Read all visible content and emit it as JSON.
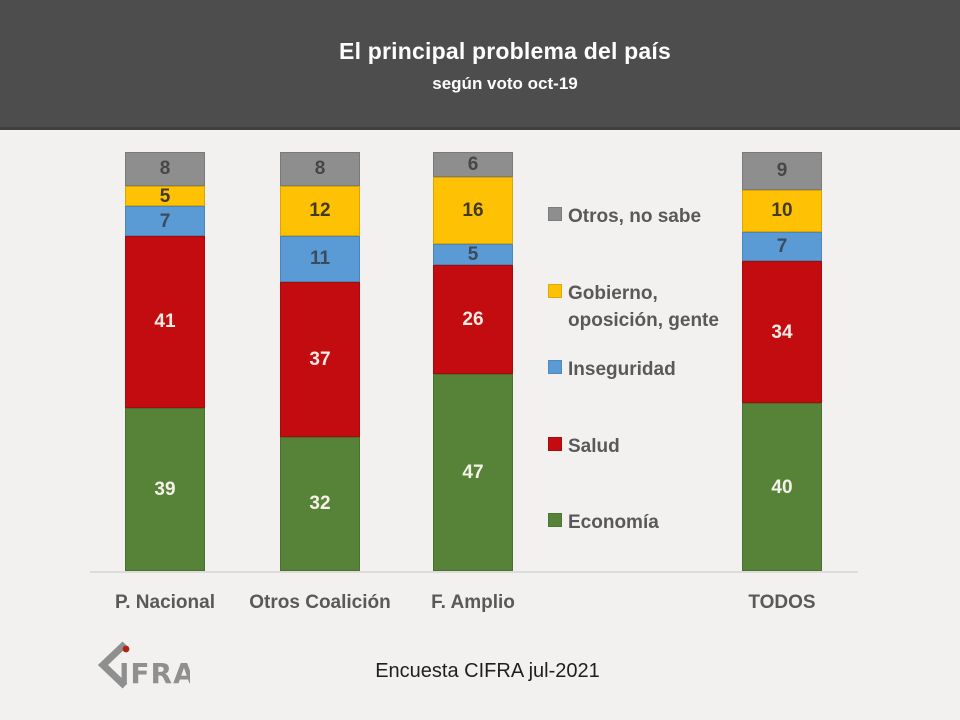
{
  "header": {
    "title": "El principal problema del país",
    "subtitle": "según voto oct-19"
  },
  "footer": {
    "source": "Encuesta CIFRA jul-2021",
    "logo_brand": "CIFRA",
    "logo_letters": "IFRA"
  },
  "colors": {
    "header_bg": "#4d4d4d",
    "page_bg": "#f2f1f0",
    "axis_line": "#dddcdb",
    "text_gray": "#595959",
    "logo_gray": "#8f8f8f",
    "logo_dot_red": "#b02418"
  },
  "chart_data": {
    "type": "bar",
    "variant": "stacked-100",
    "title": "El principal problema del país",
    "subtitle": "según voto oct-19",
    "categories": [
      "P. Nacional",
      "Otros Coalición",
      "F. Amplio",
      "TODOS"
    ],
    "series": [
      {
        "name": "Economía",
        "color": "#578339",
        "label_color": "#f4f2e6",
        "values": [
          39,
          32,
          47,
          40
        ]
      },
      {
        "name": "Salud",
        "color": "#c30c10",
        "label_color": "#f7ebe4",
        "values": [
          41,
          37,
          26,
          34
        ]
      },
      {
        "name": "Inseguridad",
        "color": "#5b9bd5",
        "label_color": "#3d4a5c",
        "values": [
          7,
          11,
          5,
          7
        ]
      },
      {
        "name": "Gobierno, oposición, gente",
        "color": "#fec104",
        "label_color": "#403a28",
        "values": [
          5,
          12,
          16,
          10
        ]
      },
      {
        "name": "Otros, no sabe",
        "color": "#8e8e8e",
        "label_color": "#474747",
        "values": [
          8,
          8,
          6,
          9
        ]
      }
    ],
    "legend": [
      {
        "label": "Otros, no sabe",
        "color": "#8e8e8e"
      },
      {
        "label": "Gobierno,\noposición, gente",
        "color": "#fec104"
      },
      {
        "label": "Inseguridad",
        "color": "#5b9bd5"
      },
      {
        "label": "Salud",
        "color": "#c30c10"
      },
      {
        "label": "Economía",
        "color": "#578339"
      }
    ],
    "ylim": [
      0,
      100
    ],
    "grid": false,
    "legend_position": "right",
    "value_labels": "inside"
  }
}
